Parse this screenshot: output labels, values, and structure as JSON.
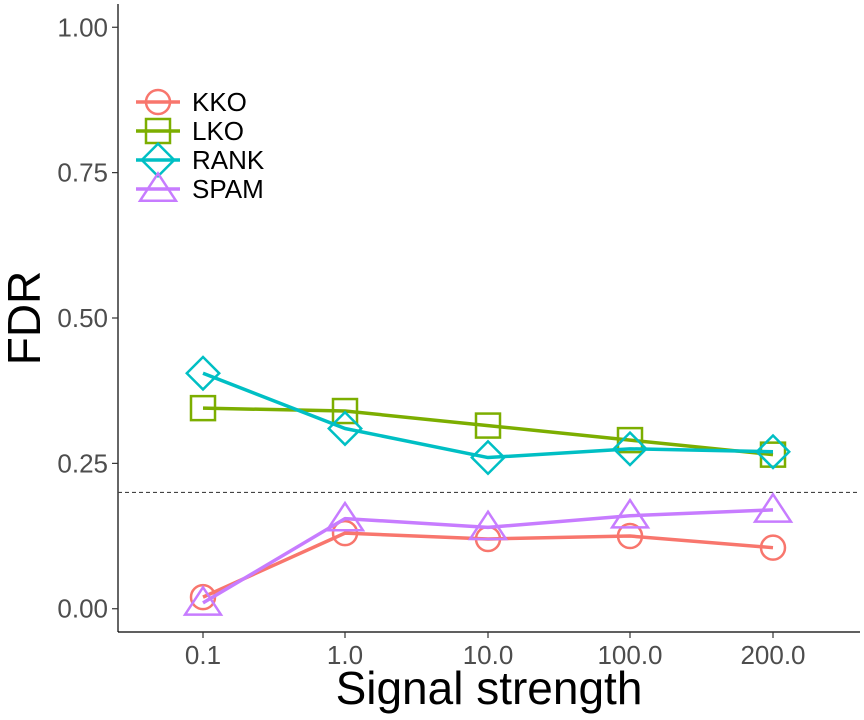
{
  "chart_data": {
    "type": "line",
    "title": "",
    "xlabel": "Signal strength",
    "ylabel": "FDR",
    "categories": [
      "0.1",
      "1.0",
      "10.0",
      "100.0",
      "200.0"
    ],
    "ylim": [
      -0.04,
      1.04
    ],
    "yticks": [
      0.0,
      0.25,
      0.5,
      0.75,
      1.0
    ],
    "ytick_labels": [
      "0.00",
      "0.25",
      "0.50",
      "0.75",
      "1.00"
    ],
    "grid": false,
    "legend_position": "top-left",
    "reference_line": {
      "y": 0.2,
      "style": "dashed"
    },
    "series": [
      {
        "name": "KKO",
        "marker": "circle",
        "color": "#F8766D",
        "values": [
          0.02,
          0.13,
          0.12,
          0.125,
          0.105
        ]
      },
      {
        "name": "LKO",
        "marker": "square",
        "color": "#7CAE00",
        "values": [
          0.345,
          0.34,
          0.315,
          0.29,
          0.265
        ]
      },
      {
        "name": "RANK",
        "marker": "diamond",
        "color": "#00BFC4",
        "values": [
          0.405,
          0.31,
          0.26,
          0.275,
          0.27
        ]
      },
      {
        "name": "SPAM",
        "marker": "triangle",
        "color": "#C77CFF",
        "values": [
          0.01,
          0.155,
          0.14,
          0.16,
          0.17
        ]
      }
    ]
  }
}
